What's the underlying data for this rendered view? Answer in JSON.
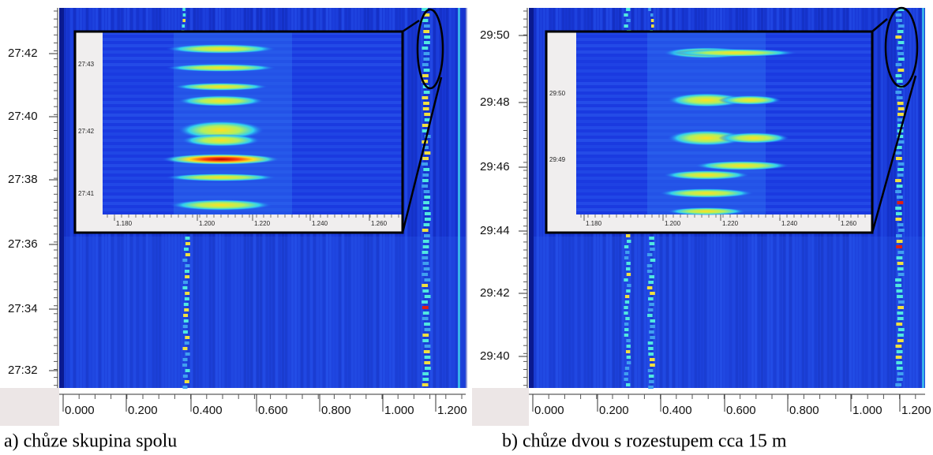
{
  "panels": [
    {
      "y_ticks": [
        "27:42",
        "27:40",
        "27:38",
        "27:36",
        "27:34",
        "27:32"
      ],
      "x_ticks": [
        "0.000",
        "0.200",
        "0.400",
        "0.600",
        "0.800",
        "1.000",
        "1.200"
      ],
      "inset": {
        "y_ticks": [
          "27:43",
          "27:42",
          "27:41"
        ],
        "x_ticks": [
          "1.180",
          "1.200",
          "1.220",
          "1.240",
          "1.260"
        ]
      },
      "caption": "a) chůze skupina spolu"
    },
    {
      "y_ticks": [
        "29:50",
        "29:48",
        "29:46",
        "29:44",
        "29:42",
        "29:40"
      ],
      "x_ticks": [
        "0.000",
        "0.200",
        "0.400",
        "0.600",
        "0.800",
        "1.000",
        "1.200"
      ],
      "inset": {
        "y_ticks": [
          "29:50",
          "29:49"
        ],
        "x_ticks": [
          "1.180",
          "1.200",
          "1.220",
          "1.240",
          "1.260"
        ]
      },
      "caption": "b) chůze dvou s rozestupem cca 15 m"
    }
  ]
}
